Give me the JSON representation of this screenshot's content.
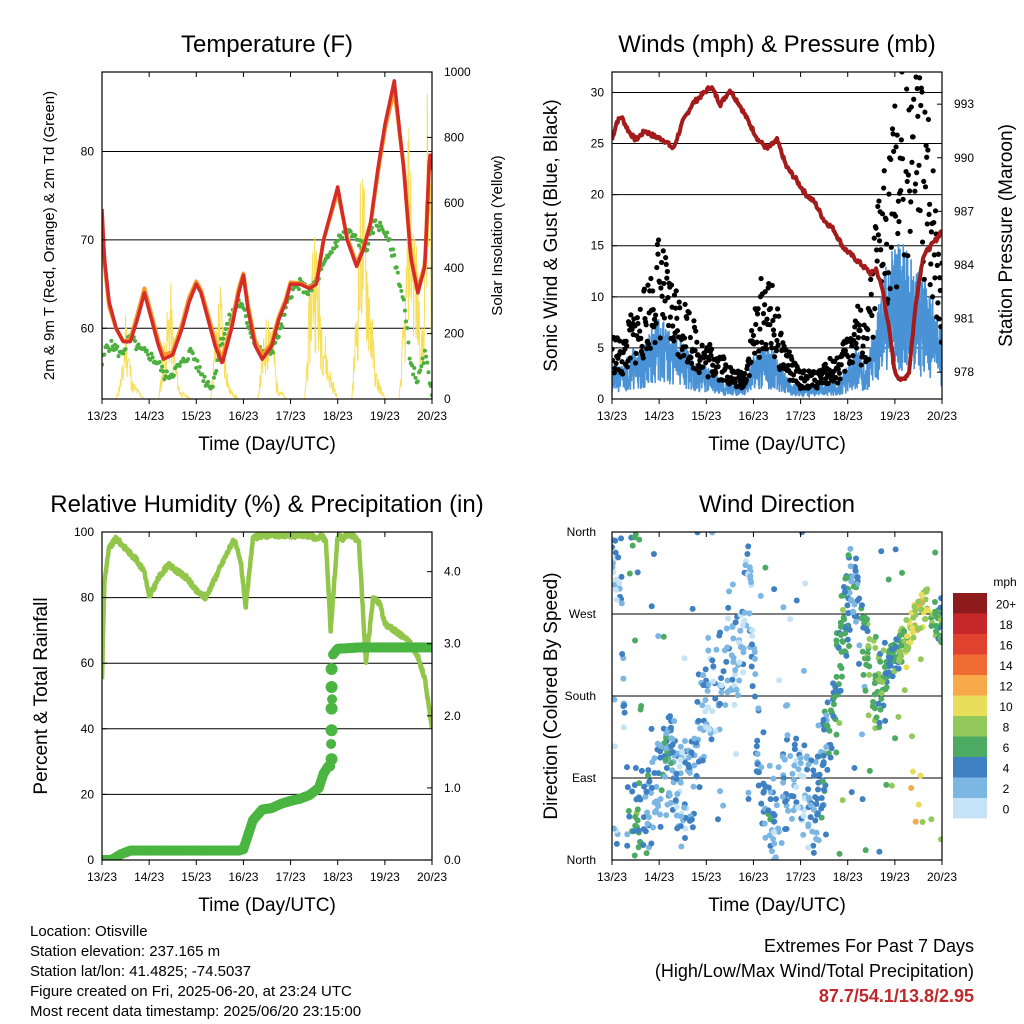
{
  "colors": {
    "temp2m": "#d62b27",
    "temp9m": "#f29b2c",
    "dewpoint": "#4caf3e",
    "solar": "#f7df5a",
    "wind": "#4a92d6",
    "gust": "#000000",
    "pressure": "#a31b1b",
    "rh": "#92c64a",
    "precip": "#4ab540",
    "extremes": "#c0282a"
  },
  "x_ticks": [
    "13/23",
    "14/23",
    "15/23",
    "16/23",
    "17/23",
    "18/23",
    "19/23",
    "20/23"
  ],
  "chart_data": [
    {
      "id": "temperature",
      "type": "line",
      "title": "Temperature (F)",
      "xlabel": "Time (Day/UTC)",
      "ylabel": "2m & 9m T (Red, Orange) & 2m Td (Green)",
      "y2label": "Solar Insolation (Yellow)",
      "xlim": [
        0,
        7
      ],
      "ylim": [
        52,
        89
      ],
      "y2lim": [
        0,
        1000
      ],
      "yticks": [
        60,
        70,
        80
      ],
      "y2ticks": [
        0,
        200,
        400,
        600,
        800,
        1000
      ],
      "grid": true,
      "series": [
        {
          "key": "temp2m",
          "x": [
            0,
            0.05,
            0.15,
            0.3,
            0.45,
            0.6,
            0.75,
            0.9,
            1.0,
            1.1,
            1.2,
            1.3,
            1.5,
            1.7,
            1.85,
            2.0,
            2.1,
            2.25,
            2.4,
            2.55,
            2.75,
            2.9,
            3.0,
            3.1,
            3.25,
            3.4,
            3.6,
            3.75,
            3.9,
            4.0,
            4.2,
            4.4,
            4.55,
            4.7,
            4.85,
            5.0,
            5.2,
            5.4,
            5.55,
            5.7,
            5.85,
            6.0,
            6.2,
            6.4,
            6.55,
            6.7,
            6.85,
            6.95,
            7.0
          ],
          "y": [
            73.5,
            68,
            63,
            60,
            58.5,
            58.5,
            61,
            64,
            62,
            60,
            58,
            56.5,
            57,
            60,
            63,
            65,
            64,
            61,
            58,
            56,
            60,
            64,
            66,
            62,
            58,
            56.5,
            58,
            61,
            63,
            65,
            65,
            64.5,
            65,
            70,
            73,
            76,
            70,
            67,
            69,
            72,
            78,
            83,
            88,
            78,
            68,
            64,
            67,
            80,
            78
          ]
        },
        {
          "key": "temp9m",
          "x": [
            0,
            0.05,
            0.15,
            0.3,
            0.45,
            0.6,
            0.75,
            0.9,
            1.0,
            1.1,
            1.2,
            1.3,
            1.5,
            1.7,
            1.85,
            2.0,
            2.1,
            2.25,
            2.4,
            2.55,
            2.75,
            2.9,
            3.0,
            3.1,
            3.25,
            3.4,
            3.6,
            3.75,
            3.9,
            4.0,
            4.2,
            4.4,
            4.55,
            4.7,
            4.85,
            5.0,
            5.2,
            5.4,
            5.55,
            5.7,
            5.85,
            6.0,
            6.2,
            6.4,
            6.55,
            6.7,
            6.85,
            6.95,
            7.0
          ],
          "y": [
            73,
            67.5,
            62.5,
            60,
            58.5,
            58.8,
            61.5,
            64.5,
            62.5,
            60.5,
            58.5,
            57,
            57.3,
            60.5,
            63.5,
            65.3,
            64.3,
            61.5,
            58.5,
            56.5,
            60.5,
            64.5,
            66.2,
            62.5,
            58.5,
            57,
            58.3,
            61.3,
            63.3,
            65.2,
            65.1,
            64.6,
            65.1,
            70,
            72.8,
            75.5,
            70.3,
            67.3,
            69.2,
            72,
            77.5,
            82.5,
            87,
            78.3,
            68.3,
            64.3,
            67.3,
            79.5,
            77.8
          ]
        },
        {
          "key": "dewpoint",
          "x": [
            0,
            0.1,
            0.25,
            0.4,
            0.6,
            0.8,
            1.0,
            1.2,
            1.35,
            1.5,
            1.7,
            1.9,
            2.0,
            2.2,
            2.35,
            2.5,
            2.7,
            2.9,
            3.0,
            3.2,
            3.4,
            3.6,
            3.8,
            4.0,
            4.2,
            4.4,
            4.6,
            4.8,
            5.0,
            5.2,
            5.4,
            5.6,
            5.8,
            6.0,
            6.2,
            6.4,
            6.55,
            6.7,
            6.85,
            7.0
          ],
          "y": [
            56,
            58,
            58,
            57,
            59,
            57.5,
            57,
            56,
            54.5,
            55,
            56,
            57.5,
            56,
            54,
            53.5,
            58,
            61,
            63,
            62,
            59,
            57,
            57.5,
            60,
            64,
            65,
            64,
            66,
            68,
            70,
            71,
            70,
            69,
            72,
            71,
            68,
            63,
            56,
            54,
            57,
            53
          ]
        },
        {
          "key": "solar",
          "x": [
            0,
            0.3,
            0.45,
            0.5,
            0.55,
            0.65,
            0.9,
            1.0,
            1.2,
            1.3,
            1.45,
            1.5,
            1.55,
            1.65,
            1.9,
            2.0,
            2.3,
            2.4,
            2.5,
            2.55,
            2.6,
            2.7,
            2.9,
            3.0,
            3.3,
            3.4,
            3.55,
            3.65,
            3.7,
            3.9,
            4.0,
            4.3,
            4.45,
            4.5,
            4.6,
            4.8,
            5.0,
            5.3,
            5.45,
            5.5,
            5.6,
            5.7,
            5.8,
            6.0,
            6.3,
            6.45,
            6.5,
            6.6,
            6.7,
            6.8,
            6.9,
            7.0
          ],
          "y": [
            0,
            0,
            120,
            300,
            200,
            60,
            0,
            0,
            0,
            150,
            380,
            260,
            150,
            30,
            0,
            0,
            0,
            200,
            390,
            330,
            200,
            40,
            0,
            0,
            0,
            150,
            350,
            200,
            60,
            0,
            0,
            0,
            500,
            620,
            400,
            120,
            0,
            0,
            500,
            800,
            600,
            350,
            100,
            0,
            0,
            400,
            900,
            650,
            420,
            200,
            950,
            700
          ]
        }
      ]
    },
    {
      "id": "winds",
      "type": "scatter",
      "title": "Winds (mph) & Pressure (mb)",
      "xlabel": "Time (Day/UTC)",
      "ylabel": "Sonic Wind & Gust (Blue, Black)",
      "y2label": "Station Pressure (Maroon)",
      "xlim": [
        0,
        7
      ],
      "ylim": [
        0,
        32
      ],
      "y2lim": [
        976.5,
        994.8
      ],
      "yticks": [
        0,
        5,
        10,
        15,
        20,
        25,
        30
      ],
      "y2ticks": [
        978,
        981,
        984,
        987,
        990,
        993
      ],
      "grid": true,
      "series": [
        {
          "key": "gust",
          "x": [
            0,
            0.2,
            0.4,
            0.6,
            0.8,
            1.0,
            1.2,
            1.4,
            1.6,
            1.8,
            2.0,
            2.2,
            2.4,
            2.6,
            2.8,
            3.0,
            3.2,
            3.4,
            3.6,
            3.8,
            4.0,
            4.2,
            4.4,
            4.6,
            4.8,
            5.0,
            5.2,
            5.4,
            5.6,
            5.8,
            6.0,
            6.2,
            6.4,
            6.6,
            6.8,
            7.0
          ],
          "y": [
            5,
            4,
            6,
            7,
            9,
            12,
            9,
            8,
            7,
            5,
            4,
            4,
            3,
            2,
            2,
            6,
            9,
            8,
            5,
            3,
            2,
            2,
            2,
            3,
            3,
            5,
            7,
            5,
            13,
            18,
            21,
            24,
            25,
            22,
            18,
            10
          ]
        },
        {
          "key": "wind",
          "x": [
            0,
            0.2,
            0.4,
            0.6,
            0.8,
            1.0,
            1.2,
            1.4,
            1.6,
            1.8,
            2.0,
            2.2,
            2.4,
            2.6,
            2.8,
            3.0,
            3.2,
            3.4,
            3.6,
            3.8,
            4.0,
            4.2,
            4.4,
            4.6,
            4.8,
            5.0,
            5.2,
            5.4,
            5.6,
            5.8,
            6.0,
            6.2,
            6.4,
            6.6,
            6.8,
            7.0
          ],
          "y": [
            2,
            2,
            3,
            3,
            4,
            5,
            4,
            4,
            3,
            2,
            2,
            1.5,
            1,
            0.8,
            0.8,
            2.5,
            3.5,
            3,
            2,
            1,
            0.8,
            0.8,
            0.8,
            1,
            1,
            2,
            3,
            2,
            5,
            8,
            9,
            9,
            8,
            7,
            6,
            4
          ]
        },
        {
          "key": "pressure",
          "x": [
            0,
            0.1,
            0.2,
            0.35,
            0.5,
            0.7,
            0.9,
            1.1,
            1.3,
            1.5,
            1.7,
            1.9,
            2.1,
            2.3,
            2.5,
            2.7,
            2.9,
            3.1,
            3.3,
            3.5,
            3.7,
            3.9,
            4.1,
            4.3,
            4.5,
            4.7,
            4.9,
            5.1,
            5.3,
            5.5,
            5.6,
            5.75,
            5.9,
            6.0,
            6.15,
            6.3,
            6.45,
            6.6,
            6.75,
            6.9,
            7.0
          ],
          "y": [
            991,
            992,
            992.3,
            991.5,
            991,
            991.5,
            991.2,
            991,
            990.5,
            992,
            993,
            993.5,
            994,
            993,
            993.8,
            993,
            992,
            991,
            990.5,
            991,
            989.5,
            988.8,
            988,
            987.5,
            986.5,
            986,
            985,
            984.5,
            984,
            983.5,
            983.8,
            982.5,
            980,
            978,
            977.5,
            978,
            982,
            984.5,
            985,
            985.5,
            986
          ]
        }
      ]
    },
    {
      "id": "humidity",
      "type": "scatter",
      "title": "Relative Humidity (%) & Precipitation (in)",
      "xlabel": "Time (Day/UTC)",
      "ylabel": "Percent & Total Rainfall",
      "xlim": [
        0,
        7
      ],
      "ylim": [
        0,
        100
      ],
      "y2lim": [
        0,
        4.55
      ],
      "yticks": [
        0,
        20,
        40,
        60,
        80,
        100
      ],
      "y2ticks": [
        "0.0",
        "1.0",
        "2.0",
        "3.0",
        "4.0"
      ],
      "grid": true,
      "series": [
        {
          "key": "rh",
          "x": [
            0,
            0.05,
            0.15,
            0.3,
            0.5,
            0.7,
            0.9,
            1.0,
            1.2,
            1.4,
            1.6,
            1.8,
            2.0,
            2.2,
            2.4,
            2.6,
            2.8,
            2.95,
            3.05,
            3.2,
            3.4,
            3.6,
            3.8,
            4.0,
            4.2,
            4.4,
            4.55,
            4.65,
            4.75,
            4.85,
            5.0,
            5.1,
            5.2,
            5.3,
            5.45,
            5.6,
            5.75,
            5.9,
            6.0,
            6.2,
            6.4,
            6.55,
            6.7,
            6.85,
            7.0
          ],
          "y": [
            55,
            85,
            95,
            98,
            95,
            92,
            88,
            80,
            86,
            90,
            88,
            86,
            82,
            80,
            86,
            92,
            98,
            90,
            77,
            98,
            99,
            99,
            99,
            99,
            99,
            99,
            98,
            99,
            97,
            70,
            99,
            98,
            99,
            99,
            97,
            60,
            80,
            78,
            72,
            70,
            68,
            66,
            62,
            55,
            40
          ]
        },
        {
          "key": "precip",
          "x": [
            0,
            0.2,
            0.4,
            0.6,
            1.0,
            1.5,
            2.0,
            2.5,
            2.9,
            3.0,
            3.1,
            3.2,
            3.4,
            3.6,
            3.8,
            4.0,
            4.2,
            4.4,
            4.6,
            4.7,
            4.75,
            4.8,
            4.85,
            4.9,
            5.0,
            5.5,
            6.0,
            6.5,
            7.0
          ],
          "y": [
            0,
            0,
            0.08,
            0.13,
            0.13,
            0.13,
            0.13,
            0.13,
            0.13,
            0.15,
            0.35,
            0.55,
            0.7,
            0.72,
            0.78,
            0.82,
            0.85,
            0.9,
            1.0,
            1.2,
            1.25,
            1.3,
            1.3,
            2.85,
            2.93,
            2.95,
            2.95,
            2.95,
            2.95
          ]
        }
      ]
    },
    {
      "id": "direction",
      "type": "scatter",
      "title": "Wind Direction",
      "xlabel": "Time (Day/UTC)",
      "ylabel": "Direction (Colored By Speed)",
      "xlim": [
        0,
        7
      ],
      "ylim": [
        0,
        360
      ],
      "yticks": [
        "North",
        "East",
        "South",
        "West",
        "North"
      ],
      "legend_title": "mph",
      "legend_labels": [
        "20+",
        "18",
        "16",
        "14",
        "12",
        "10",
        "8",
        "6",
        "4",
        "2",
        "0"
      ],
      "legend_colors": [
        "#8e1b1b",
        "#c62828",
        "#e04230",
        "#ef6c33",
        "#f8a94a",
        "#e8de5a",
        "#93c95a",
        "#4caa63",
        "#3f80c2",
        "#7cb6e2",
        "#c4e3f6"
      ],
      "series": [
        {
          "key": "direction",
          "x": [
            0.1,
            0.2,
            0.3,
            0.4,
            0.5,
            0.7,
            0.9,
            1.1,
            1.3,
            1.5,
            1.7,
            1.9,
            2.1,
            2.3,
            2.5,
            2.7,
            2.9,
            3.1,
            3.3,
            3.5,
            3.7,
            3.9,
            4.1,
            4.3,
            4.5,
            4.7,
            4.9,
            5.1,
            5.3,
            5.5,
            5.7,
            5.9,
            6.1,
            6.3,
            6.5,
            6.7,
            6.9
          ],
          "y": [
            340,
            320,
            60,
            40,
            30,
            50,
            70,
            95,
            110,
            60,
            80,
            150,
            170,
            200,
            240,
            210,
            300,
            120,
            60,
            40,
            80,
            110,
            70,
            50,
            110,
            180,
            260,
            300,
            250,
            200,
            190,
            215,
            230,
            250,
            270,
            280,
            260
          ],
          "speed": [
            2,
            2,
            3,
            5,
            6,
            4,
            3,
            4,
            3,
            2,
            3,
            3,
            2,
            3,
            2,
            1,
            2,
            3,
            4,
            2,
            3,
            2,
            2,
            3,
            4,
            5,
            6,
            3,
            4,
            7,
            6,
            5,
            6,
            9,
            10,
            8,
            6
          ]
        }
      ]
    }
  ],
  "info": {
    "location": "Location: Otisville",
    "elevation": "Station elevation: 237.165 m",
    "latlon": "Station lat/lon: 41.4825; -74.5037",
    "created": "Figure created on Fri, 2025-06-20, at 23:24 UTC",
    "recent": "Most recent data timestamp: 2025/06/20 23:15:00"
  },
  "extremes": {
    "line1": "Extremes For Past 7 Days",
    "line2": "(High/Low/Max Wind/Total Precipitation)",
    "values": "87.7/54.1/13.8/2.95"
  }
}
